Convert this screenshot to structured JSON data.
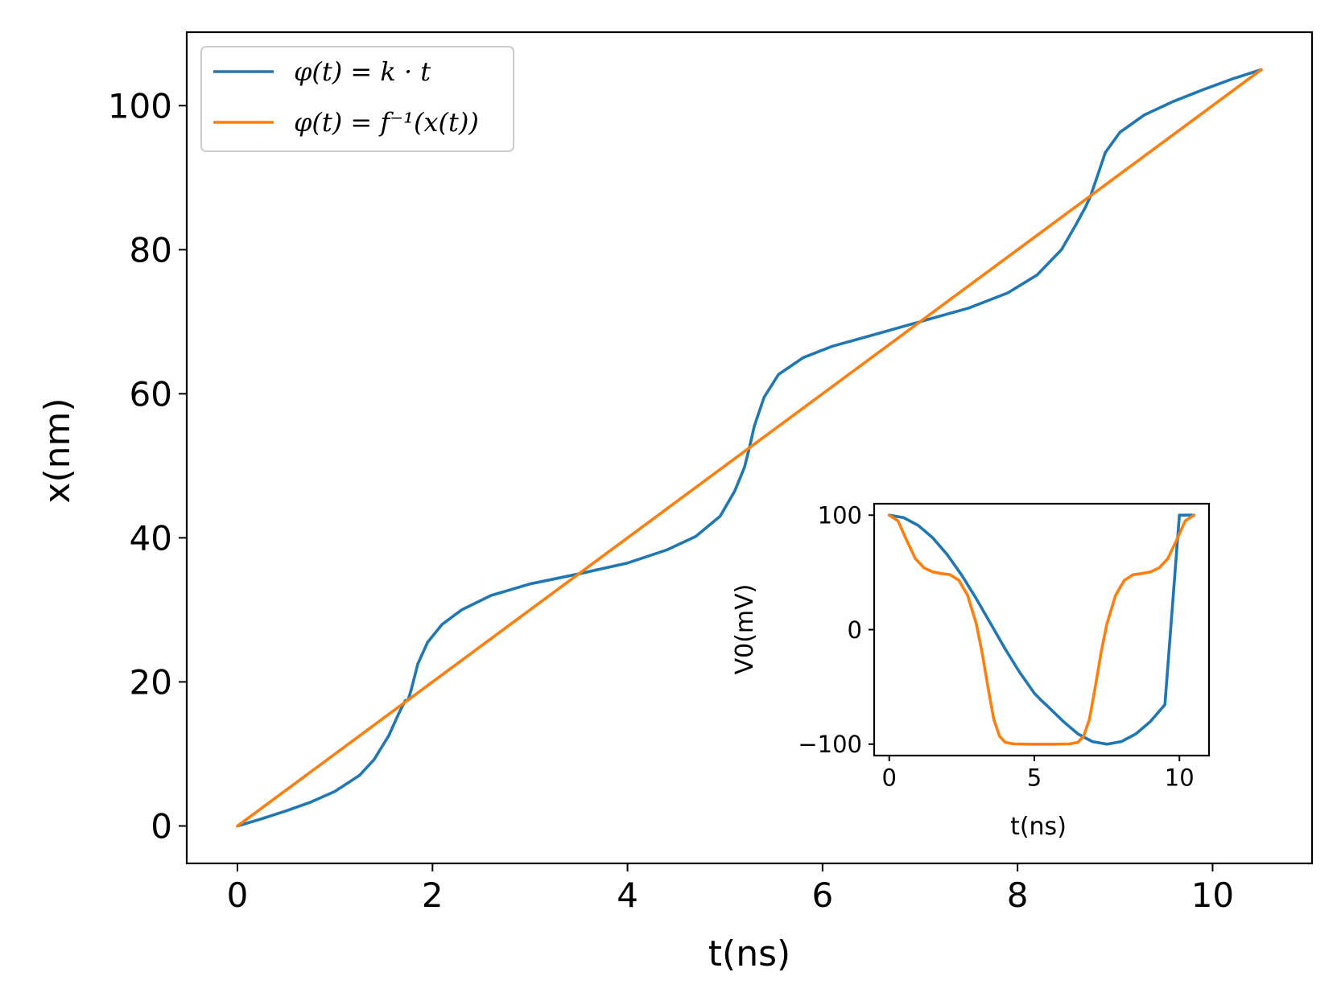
{
  "chart_data": [
    {
      "type": "line",
      "title": "",
      "xlabel": "t(ns)",
      "ylabel": "x(nm)",
      "xlim": [
        -0.52,
        11.02
      ],
      "ylim": [
        -5.2,
        110.2
      ],
      "xticks": [
        0,
        2,
        4,
        6,
        8,
        10
      ],
      "yticks": [
        0,
        20,
        40,
        60,
        80,
        100
      ],
      "legend_position": "top-left",
      "series": [
        {
          "name": "φ(t) = k · t",
          "color": "#1f77b4",
          "x": [
            0.0,
            0.25,
            0.5,
            0.75,
            1.0,
            1.25,
            1.4,
            1.55,
            1.65,
            1.72,
            1.75,
            1.78,
            1.85,
            1.95,
            2.1,
            2.3,
            2.6,
            3.0,
            3.5,
            4.0,
            4.4,
            4.7,
            4.95,
            5.1,
            5.2,
            5.25,
            5.3,
            5.4,
            5.55,
            5.8,
            6.1,
            6.5,
            7.0,
            7.5,
            7.9,
            8.2,
            8.45,
            8.6,
            8.7,
            8.75,
            8.8,
            8.9,
            9.05,
            9.3,
            9.6,
            9.9,
            10.2,
            10.5
          ],
          "values": [
            0.0,
            1.0,
            2.1,
            3.3,
            4.8,
            7.0,
            9.2,
            12.5,
            15.5,
            17.4,
            17.5,
            18.8,
            22.5,
            25.5,
            28.0,
            30.0,
            32.0,
            33.6,
            35.0,
            36.5,
            38.3,
            40.2,
            43.0,
            46.5,
            49.8,
            52.5,
            55.5,
            59.5,
            62.7,
            65.0,
            66.6,
            68.1,
            70.0,
            71.9,
            74.0,
            76.5,
            80.0,
            83.5,
            86.0,
            87.5,
            89.5,
            93.5,
            96.3,
            98.7,
            100.6,
            102.2,
            103.7,
            105.0
          ]
        },
        {
          "name": "φ(t) = f⁻¹(x(t))",
          "color": "#ff7f0e",
          "x": [
            0.0,
            10.5
          ],
          "values": [
            0.0,
            105.0
          ]
        }
      ]
    },
    {
      "type": "line",
      "title": "",
      "xlabel": "t(ns)",
      "ylabel": "V0(mV)",
      "xlim": [
        -0.52,
        11.02
      ],
      "ylim": [
        -110,
        110
      ],
      "xticks": [
        0,
        5,
        10
      ],
      "yticks": [
        -100,
        0,
        100
      ],
      "series": [
        {
          "name": "φ(t) = k · t",
          "color": "#1f77b4",
          "x": [
            0.0,
            0.5,
            1.0,
            1.5,
            2.0,
            2.5,
            3.0,
            3.5,
            4.0,
            4.5,
            5.0,
            5.25,
            5.5,
            6.0,
            6.5,
            7.0,
            7.5,
            8.0,
            8.5,
            9.0,
            9.5,
            10.0,
            10.5
          ],
          "values": [
            100.0,
            97.8,
            91.0,
            80.2,
            65.5,
            47.5,
            27.0,
            5.0,
            -17.0,
            -37.5,
            -55.5,
            -62.0,
            -68.0,
            -80.2,
            -91.0,
            -97.8,
            -100.0,
            -97.8,
            -91.0,
            -80.2,
            -65.5,
            100.0,
            100.0
          ]
        },
        {
          "name": "φ(t) = f⁻¹(x(t))",
          "color": "#ff7f0e",
          "x": [
            0.0,
            0.3,
            0.6,
            0.9,
            1.2,
            1.5,
            1.8,
            2.1,
            2.4,
            2.7,
            3.0,
            3.2,
            3.4,
            3.6,
            3.8,
            4.0,
            4.3,
            4.8,
            5.25,
            5.7,
            6.2,
            6.5,
            6.7,
            6.9,
            7.1,
            7.3,
            7.5,
            7.8,
            8.1,
            8.4,
            8.7,
            9.0,
            9.3,
            9.6,
            9.9,
            10.2,
            10.5
          ],
          "values": [
            100.0,
            95.0,
            78.0,
            62.0,
            54.0,
            50.5,
            49.0,
            48.0,
            43.0,
            30.0,
            5.0,
            -20.0,
            -50.0,
            -78.0,
            -93.0,
            -98.5,
            -99.8,
            -100.0,
            -100.0,
            -100.0,
            -99.8,
            -98.5,
            -93.0,
            -78.0,
            -50.0,
            -20.0,
            5.0,
            30.0,
            43.0,
            48.0,
            49.0,
            50.5,
            54.0,
            62.0,
            78.0,
            95.0,
            100.0
          ]
        }
      ]
    }
  ]
}
